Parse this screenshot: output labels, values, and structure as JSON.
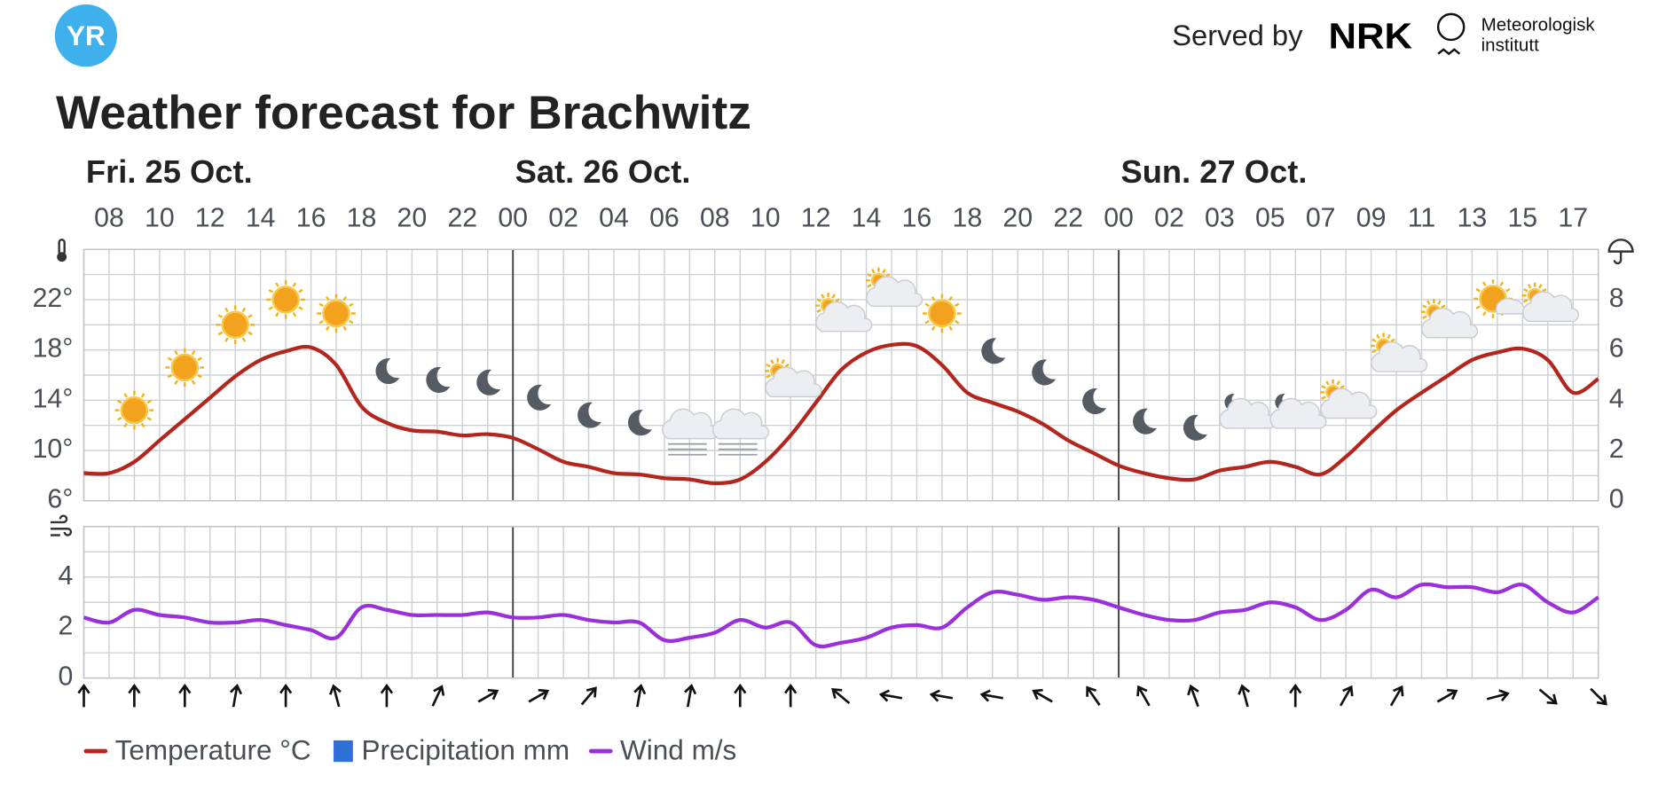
{
  "header": {
    "logo": "YR",
    "served_by": "Served by",
    "nrk": "NRK",
    "met_lines": [
      "Meteorologisk",
      "institutt"
    ],
    "title": "Weather forecast for Brachwitz"
  },
  "chart_data": [
    {
      "type": "line",
      "days": [
        {
          "label": "Fri. 25 Oct.",
          "hours": 17
        },
        {
          "label": "Sat. 26 Oct.",
          "hours": 24
        },
        {
          "label": "Sun. 27 Oct.",
          "hours": 20
        }
      ],
      "categories": [
        null,
        "08",
        null,
        "10",
        null,
        "12",
        null,
        "14",
        null,
        "16",
        null,
        "18",
        null,
        "20",
        null,
        "22",
        null,
        "00",
        null,
        "02",
        null,
        "04",
        null,
        "06",
        null,
        "08",
        null,
        "10",
        null,
        "12",
        null,
        "14",
        null,
        "16",
        null,
        "18",
        null,
        "20",
        null,
        "22",
        null,
        "00",
        null,
        "02",
        null,
        "03",
        null,
        "05",
        null,
        "07",
        null,
        "09",
        null,
        "11",
        null,
        "13",
        null,
        "15",
        null,
        "17",
        null
      ],
      "series": [
        {
          "name": "Temperature °C",
          "color": "#b3261e",
          "values": [
            8.2,
            8.2,
            9.1,
            10.8,
            12.5,
            14.2,
            15.9,
            17.2,
            17.9,
            18.2,
            16.8,
            13.5,
            12.2,
            11.6,
            11.5,
            11.2,
            11.3,
            11.0,
            10.1,
            9.1,
            8.7,
            8.2,
            8.1,
            7.8,
            7.7,
            7.4,
            7.7,
            9.1,
            11.2,
            13.8,
            16.4,
            17.8,
            18.4,
            18.3,
            16.8,
            14.6,
            13.8,
            13.1,
            12.1,
            10.8,
            9.8,
            8.8,
            8.2,
            7.8,
            7.7,
            8.4,
            8.7,
            9.1,
            8.7,
            8.1,
            9.5,
            11.4,
            13.2,
            14.6,
            15.9,
            17.2,
            17.8,
            18.1,
            17.2,
            14.6,
            15.7
          ]
        },
        {
          "name": "Precipitation mm",
          "color": "#2f6fd8",
          "axis": "y2",
          "values": [
            0,
            0,
            0,
            0,
            0,
            0,
            0,
            0,
            0,
            0,
            0,
            0,
            0,
            0,
            0,
            0,
            0,
            0,
            0,
            0,
            0,
            0,
            0,
            0,
            0,
            0,
            0,
            0,
            0,
            0,
            0,
            0,
            0,
            0,
            0,
            0,
            0,
            0,
            0,
            0,
            0,
            0,
            0,
            0,
            0,
            0,
            0,
            0,
            0,
            0,
            0,
            0,
            0,
            0,
            0,
            0,
            0,
            0,
            0,
            0,
            0
          ]
        }
      ],
      "symbols": [
        null,
        null,
        "sun",
        null,
        "sun",
        null,
        "sun",
        null,
        "sun",
        null,
        "sun",
        null,
        "moon",
        null,
        "moon",
        null,
        "moon",
        null,
        "moon",
        null,
        "moon",
        null,
        "moon",
        null,
        "fog",
        null,
        "fog",
        null,
        "cloud-sun",
        null,
        "cloud-sun",
        null,
        "cloud-sun",
        null,
        "sun",
        null,
        "moon",
        null,
        "moon",
        null,
        "moon",
        null,
        "moon",
        null,
        "moon",
        null,
        "cloud-moon",
        null,
        "cloud-moon",
        null,
        "cloud-sun",
        null,
        "cloud-sun",
        null,
        "cloud-sun",
        null,
        "sun-cloud",
        null,
        "cloud-sun",
        null,
        null
      ],
      "ylim": [
        6,
        26
      ],
      "yticks": [
        {
          "value": 6,
          "label": "6°"
        },
        {
          "value": 10,
          "label": "10°"
        },
        {
          "value": 14,
          "label": "14°"
        },
        {
          "value": 18,
          "label": "18°"
        },
        {
          "value": 22,
          "label": "22°"
        }
      ],
      "ygrid": [
        6,
        8,
        10,
        12,
        14,
        16,
        18,
        20,
        22,
        24,
        26
      ],
      "y2lim": [
        0,
        10
      ],
      "y2ticks": [
        0,
        2,
        4,
        6,
        8
      ],
      "grid": true
    },
    {
      "type": "line",
      "series": [
        {
          "name": "Wind m/s",
          "color": "#9b2fdb",
          "values": [
            2.4,
            2.2,
            2.7,
            2.5,
            2.4,
            2.2,
            2.2,
            2.3,
            2.1,
            1.9,
            1.6,
            2.8,
            2.7,
            2.5,
            2.5,
            2.5,
            2.6,
            2.4,
            2.4,
            2.5,
            2.3,
            2.2,
            2.2,
            1.5,
            1.6,
            1.8,
            2.3,
            2.0,
            2.2,
            1.3,
            1.4,
            1.6,
            2.0,
            2.1,
            2.0,
            2.8,
            3.4,
            3.3,
            3.1,
            3.2,
            3.1,
            2.8,
            2.5,
            2.3,
            2.3,
            2.6,
            2.7,
            3.0,
            2.8,
            2.3,
            2.7,
            3.5,
            3.2,
            3.7,
            3.6,
            3.6,
            3.4,
            3.7,
            3.0,
            2.6,
            3.2
          ]
        }
      ],
      "wind_direction": [
        0,
        null,
        0,
        null,
        0,
        null,
        10,
        null,
        0,
        null,
        -15,
        null,
        0,
        null,
        25,
        null,
        60,
        null,
        60,
        null,
        40,
        null,
        10,
        null,
        10,
        null,
        0,
        null,
        0,
        null,
        -50,
        null,
        -80,
        null,
        -80,
        null,
        -80,
        null,
        -60,
        null,
        -35,
        null,
        -30,
        null,
        -20,
        null,
        -15,
        null,
        0,
        null,
        30,
        null,
        30,
        null,
        60,
        null,
        75,
        null,
        130,
        null,
        135
      ],
      "ylim": [
        0,
        6
      ],
      "yticks": [
        0,
        2,
        4
      ],
      "ygrid": [
        0,
        1,
        2,
        3,
        4,
        5,
        6
      ],
      "grid": true
    }
  ]
}
